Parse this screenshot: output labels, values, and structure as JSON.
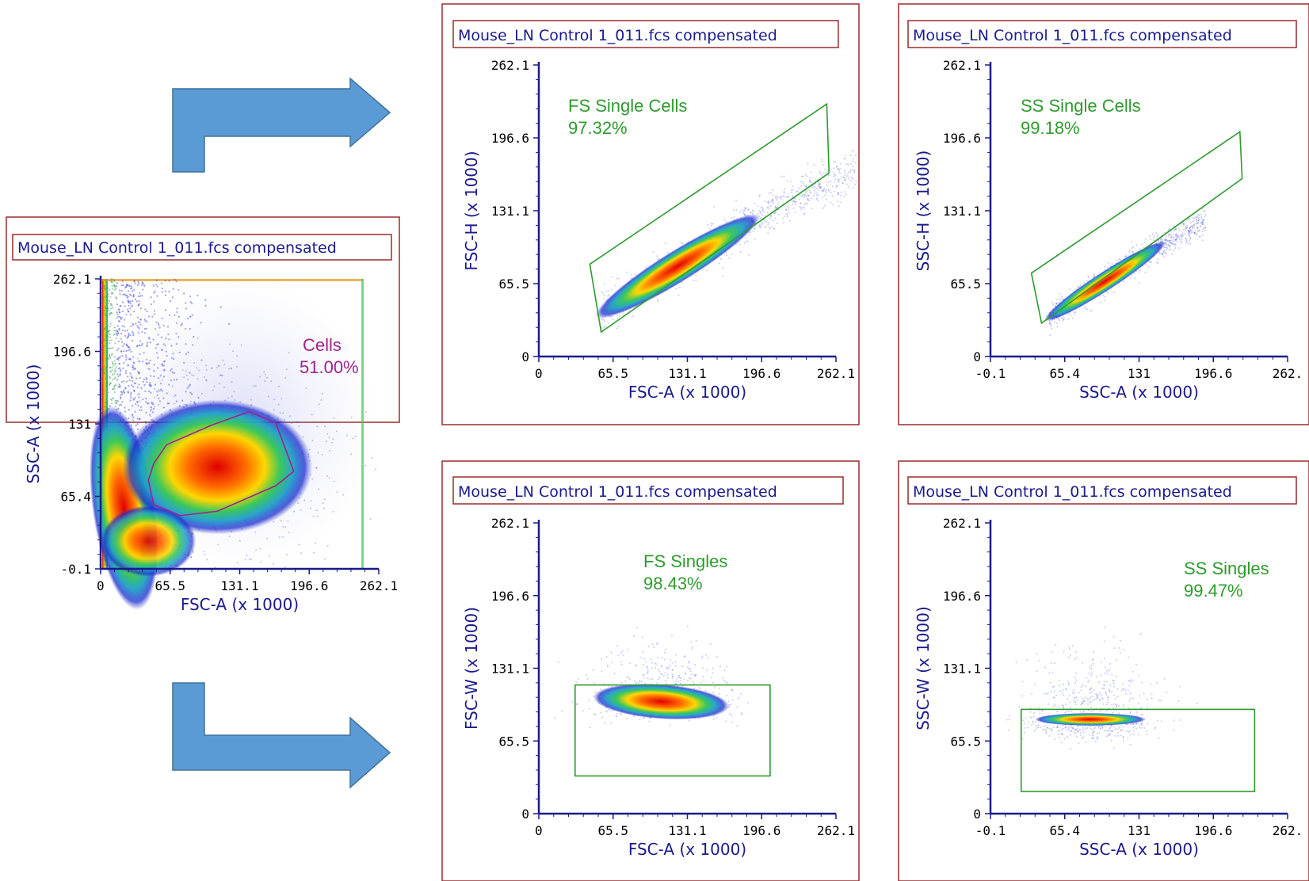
{
  "colors": {
    "frame": "#9b2c2c",
    "title": "#1a1a8c",
    "axis": "#1a1a8c",
    "gate_green": "#2e9b2e",
    "gate_purple": "#a0238c",
    "arrow": "#5b9bd5"
  },
  "chart_data": [
    {
      "id": "cells",
      "type": "scatter",
      "title": "Mouse_LN Control 1_011.fcs compensated",
      "xlabel": "FSC-A (x 1000)",
      "ylabel": "SSC-A (x 1000)",
      "x_ticks": [
        "0",
        "65.5",
        "131.1",
        "196.6",
        "262.1"
      ],
      "y_ticks": [
        "-0.1",
        "65.4",
        "131",
        "196.6",
        "262.1"
      ],
      "xlim": [
        0,
        262.1
      ],
      "ylim": [
        -0.1,
        262.1
      ],
      "gate": {
        "name": "Cells",
        "percent": "51.00%",
        "shape": "polygon",
        "color": "#a0238c",
        "points": [
          [
            50,
            95
          ],
          [
            62,
            112
          ],
          [
            105,
            130
          ],
          [
            140,
            142
          ],
          [
            165,
            132
          ],
          [
            182,
            88
          ],
          [
            165,
            75
          ],
          [
            110,
            52
          ],
          [
            75,
            48
          ],
          [
            50,
            58
          ],
          [
            45,
            80
          ]
        ]
      }
    },
    {
      "id": "fs-single-cells",
      "type": "scatter",
      "title": "Mouse_LN Control 1_011.fcs compensated",
      "xlabel": "FSC-A (x 1000)",
      "ylabel": "FSC-H (x 1000)",
      "x_ticks": [
        "0",
        "65.5",
        "131.1",
        "196.6",
        "262.1"
      ],
      "y_ticks": [
        "0",
        "65.5",
        "131.1",
        "196.6",
        "262.1"
      ],
      "xlim": [
        0,
        262.1
      ],
      "ylim": [
        0,
        262.1
      ],
      "gate": {
        "name": "FS Single Cells",
        "percent": "97.32%",
        "shape": "polygon",
        "color": "#2e9b2e",
        "points": [
          [
            45,
            83
          ],
          [
            254,
            227
          ],
          [
            256,
            165
          ],
          [
            55,
            22
          ]
        ]
      }
    },
    {
      "id": "ss-single-cells",
      "type": "scatter",
      "title": "Mouse_LN Control 1_011.fcs compensated",
      "xlabel": "SSC-A (x 1000)",
      "ylabel": "SSC-H (x 1000)",
      "x_ticks": [
        "-0.1",
        "65.4",
        "131",
        "196.6",
        "262."
      ],
      "y_ticks": [
        "0",
        "65.5",
        "131.1",
        "196.6",
        "262.1"
      ],
      "xlim": [
        -0.1,
        262.1
      ],
      "ylim": [
        0,
        262.1
      ],
      "gate": {
        "name": "SS Single Cells",
        "percent": "99.18%",
        "shape": "polygon",
        "color": "#2e9b2e",
        "points": [
          [
            36,
            75
          ],
          [
            220,
            202
          ],
          [
            222,
            160
          ],
          [
            45,
            30
          ]
        ]
      }
    },
    {
      "id": "fs-singles",
      "type": "scatter",
      "title": "Mouse_LN Control 1_011.fcs compensated",
      "xlabel": "FSC-A (x 1000)",
      "ylabel": "FSC-W (x 1000)",
      "x_ticks": [
        "0",
        "65.5",
        "131.1",
        "196.6",
        "262.1"
      ],
      "y_ticks": [
        "0",
        "65.5",
        "131.1",
        "196.6",
        "262.1"
      ],
      "xlim": [
        0,
        262.1
      ],
      "ylim": [
        0,
        262.1
      ],
      "gate": {
        "name": "FS Singles",
        "percent": "98.43%",
        "shape": "rectangle",
        "color": "#2e9b2e",
        "points": [
          [
            32,
            34
          ],
          [
            204,
            116
          ]
        ]
      }
    },
    {
      "id": "ss-singles",
      "type": "scatter",
      "title": "Mouse_LN Control 1_011.fcs compensated",
      "xlabel": "SSC-A (x 1000)",
      "ylabel": "SSC-W (x 1000)",
      "x_ticks": [
        "-0.1",
        "65.4",
        "131",
        "196.6",
        "262."
      ],
      "y_ticks": [
        "0",
        "65.5",
        "131.1",
        "196.6",
        "262.1"
      ],
      "xlim": [
        -0.1,
        262.1
      ],
      "ylim": [
        0,
        262.1
      ],
      "gate": {
        "name": "SS Singles",
        "percent": "99.47%",
        "shape": "rectangle",
        "color": "#2e9b2e",
        "points": [
          [
            27,
            20
          ],
          [
            233,
            94
          ]
        ]
      }
    }
  ]
}
